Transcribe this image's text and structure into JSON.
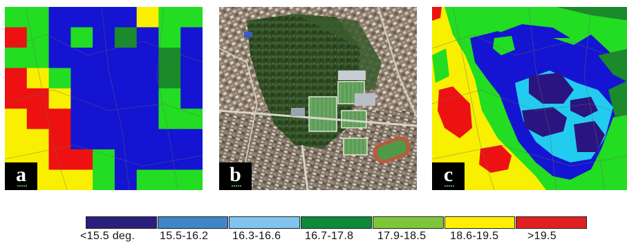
{
  "panels": [
    {
      "id": "a",
      "label": "a",
      "description": "coarse-temperature-grid"
    },
    {
      "id": "b",
      "label": "b",
      "description": "satellite-photo"
    },
    {
      "id": "c",
      "label": "c",
      "description": "fine-temperature-map"
    }
  ],
  "legend": {
    "classes": [
      {
        "label": "<15.5 deg.",
        "color": "#2a1f7a"
      },
      {
        "label": "15.5-16.2",
        "color": "#3f86c8"
      },
      {
        "label": "16.3-16.6",
        "color": "#7fc4ec"
      },
      {
        "label": "16.7-17.8",
        "color": "#0a8a3a"
      },
      {
        "label": "17.9-18.5",
        "color": "#7dc63a"
      },
      {
        "label": "18.6-19.5",
        "color": "#ffee00"
      },
      {
        "label": ">19.5",
        "color": "#e02020"
      }
    ]
  },
  "map_colors": {
    "dark_blue": "#1414d2",
    "green": "#22dd22",
    "dark_green": "#1a8a2a",
    "yellow": "#f8f000",
    "red": "#ee1111",
    "cyan": "#22ccee",
    "purple": "#2a1480"
  }
}
